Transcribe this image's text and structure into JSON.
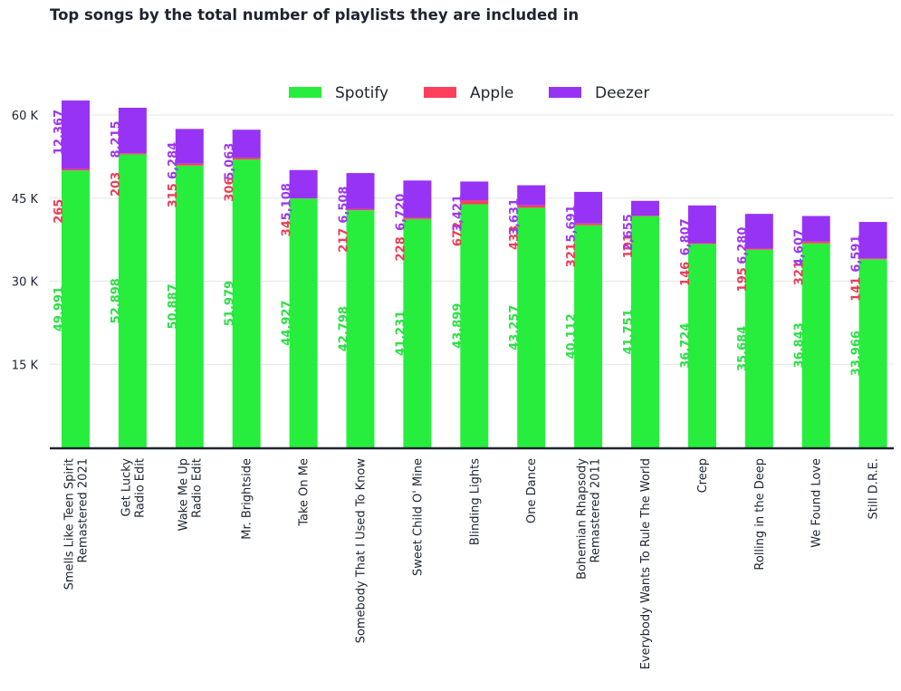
{
  "chart_data": {
    "type": "bar",
    "stacked": true,
    "title": "Top songs by the total number of playlists they are included in",
    "categories": [
      [
        "Smells Like Teen Spirit",
        "Remastered 2021"
      ],
      [
        "Get Lucky",
        "Radio Edit"
      ],
      [
        "Wake Me Up",
        "Radio Edit"
      ],
      [
        "Mr. Brightside"
      ],
      [
        "Take On Me"
      ],
      [
        "Somebody That I Used To Know"
      ],
      [
        "Sweet Child O' Mine"
      ],
      [
        "Blinding Lights"
      ],
      [
        "One Dance"
      ],
      [
        "Bohemian Rhapsody",
        "Remastered 2011"
      ],
      [
        "Everybody Wants To Rule The World"
      ],
      [
        "Creep"
      ],
      [
        "Rolling in the Deep"
      ],
      [
        "We Found Love"
      ],
      [
        "Still D.R.E."
      ]
    ],
    "series": [
      {
        "name": "Spotify",
        "color": "#27ee3c",
        "values": [
          49991,
          52898,
          50887,
          51979,
          44927,
          42798,
          41231,
          43899,
          43257,
          40112,
          41751,
          36724,
          35684,
          36843,
          33966
        ],
        "labels": [
          "49,991",
          "52,898",
          "50,887",
          "51,979",
          "44,927",
          "42,798",
          "41,231",
          "43,899",
          "43,257",
          "40,112",
          "41,751",
          "36,724",
          "35,684",
          "36,843",
          "33,966"
        ]
      },
      {
        "name": "Apple",
        "color": "#fc3f5a",
        "values": [
          265,
          203,
          315,
          306,
          34,
          217,
          228,
          672,
          433,
          321,
          101,
          146,
          195,
          321,
          141
        ],
        "labels": [
          "265",
          "203",
          "315",
          "306",
          "34",
          "217",
          "228",
          "672",
          "433",
          "321",
          "101",
          "146",
          "195",
          "321",
          "141"
        ]
      },
      {
        "name": "Deezer",
        "color": "#9733f5",
        "values": [
          12367,
          8215,
          6284,
          5063,
          5108,
          6508,
          6720,
          3421,
          3631,
          5691,
          2655,
          6807,
          6280,
          4607,
          6591
        ],
        "labels": [
          "12,367",
          "8,215",
          "6,284",
          "5,063",
          "5,108",
          "6,508",
          "6,720",
          "3,421",
          "3,631",
          "5,691",
          "2,655",
          "6,807",
          "6,280",
          "4,607",
          "6,591"
        ]
      }
    ],
    "y_ticks": [
      {
        "value": 15000,
        "label": "15 K"
      },
      {
        "value": 30000,
        "label": "30 K"
      },
      {
        "value": 45000,
        "label": "45 K"
      },
      {
        "value": 60000,
        "label": "60 K"
      }
    ],
    "ylim": [
      0,
      70000
    ],
    "xlabel": "",
    "ylabel": "",
    "grid": "horizontal",
    "legend_position": "top-center",
    "label_colors": {
      "Spotify": "#2ddf46",
      "Apple": "#ec3d56",
      "Deezer": "#9e36ee"
    }
  }
}
